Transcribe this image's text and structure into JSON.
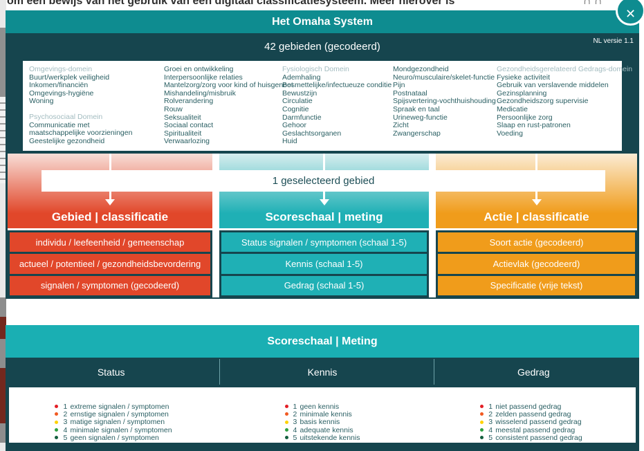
{
  "background": {
    "top_text": "om een bewijs van het gebruik van een digitaal classificatiesysteem. Meer hierover is",
    "top_right_fragment": "∩ ∩"
  },
  "modal": {
    "title": "Het Omaha System",
    "subtitle": "42 gebieden (gecodeerd)",
    "version": "NL versie 1.1",
    "close_icon": "✕"
  },
  "domains": {
    "columns": [
      {
        "blocks": [
          {
            "header": "Omgevings-domein",
            "items": [
              "Buurt/werkplek veiligheid",
              "Inkomen/financiën",
              "Omgevings-hygiëne",
              "Woning"
            ]
          },
          {
            "header": "Psychosociaal Domein",
            "items": [
              "Communicatie met",
              "maatschappelijke voorzieningen",
              "Geestelijke gezondheid"
            ]
          }
        ]
      },
      {
        "blocks": [
          {
            "header": "",
            "items": [
              "Groei en ontwikkeling",
              "Interpersoonlijke relaties",
              "Mantelzorg/zorg voor kind of huisgenoot",
              "Mishandeling/misbruik",
              "Rolverandering",
              "Rouw",
              "Seksualiteit",
              "Sociaal contact",
              "Spiritualiteit",
              "Verwaarlozing"
            ]
          }
        ]
      },
      {
        "blocks": [
          {
            "header": "Fysiologisch Domein",
            "items": [
              "Ademhaling",
              "Besmettelijke/infectueuze conditie",
              "Bewustzijn",
              "Circulatie",
              "Cognitie",
              "Darmfunctie",
              "Gehoor",
              "Geslachtsorganen",
              "Huid"
            ]
          }
        ]
      },
      {
        "blocks": [
          {
            "header": "",
            "items": [
              "Mondgezondheid",
              "Neuro/musculaire/skelet-functie",
              "Pijn",
              "Postnataal",
              "Spijsvertering-vochthuishouding",
              "Spraak en taal",
              "Urineweg-functie",
              "Zicht",
              "Zwangerschap"
            ]
          }
        ]
      },
      {
        "blocks": [
          {
            "header": "Gezondheidsgerelateerd Gedrags-domein",
            "items": [
              "Fysieke activiteit",
              "Gebruik van verslavende middelen",
              "Gezinsplanning",
              "Gezondheidszorg supervisie",
              "Medicatie",
              "Persoonlijke zorg",
              "Slaap en rust-patronen",
              "Voeding"
            ]
          }
        ]
      }
    ]
  },
  "flow": {
    "selected_label": "1 geselecteerd gebied",
    "columns": [
      {
        "header": "Gebied | classificatie",
        "color": "#e1472a",
        "buttons": [
          "individu / leefeenheid / gemeenschap",
          "actueel / potentieel / gezondheidsbevordering",
          "signalen / symptomen (gecodeerd)"
        ]
      },
      {
        "header": "Scoreschaal | meting",
        "color": "#1fb0b5",
        "buttons": [
          "Status signalen / symptomen (schaal 1-5)",
          "Kennis (schaal 1-5)",
          "Gedrag (schaal 1-5)"
        ]
      },
      {
        "header": "Actie | classificatie",
        "color": "#f09c1b",
        "buttons": [
          "Soort actie (gecodeerd)",
          "Actievlak (gecodeerd)",
          "Specificatie (vrije tekst)"
        ]
      }
    ]
  },
  "score_panel": {
    "title": "Scoreschaal | Meting",
    "columns": [
      {
        "header": "Status",
        "items": [
          {
            "num": "1",
            "label": "extreme signalen / symptomen",
            "color": "#e31e25"
          },
          {
            "num": "2",
            "label": "ernstige signalen / symptomen",
            "color": "#f15a22"
          },
          {
            "num": "3",
            "label": "matige signalen / symptomen",
            "color": "#ffd200"
          },
          {
            "num": "4",
            "label": "minimale signalen / symptomen",
            "color": "#2fa043"
          },
          {
            "num": "5",
            "label": "geen signalen / symptomen",
            "color": "#14603f"
          }
        ]
      },
      {
        "header": "Kennis",
        "items": [
          {
            "num": "1",
            "label": "geen kennis",
            "color": "#e31e25"
          },
          {
            "num": "2",
            "label": "minimale kennis",
            "color": "#f15a22"
          },
          {
            "num": "3",
            "label": "basis kennis",
            "color": "#ffd200"
          },
          {
            "num": "4",
            "label": "adequate kennis",
            "color": "#2fa043"
          },
          {
            "num": "5",
            "label": "uitstekende kennis",
            "color": "#14603f"
          }
        ]
      },
      {
        "header": "Gedrag",
        "items": [
          {
            "num": "1",
            "label": "niet passend gedrag",
            "color": "#e31e25"
          },
          {
            "num": "2",
            "label": "zelden passend gedrag",
            "color": "#f15a22"
          },
          {
            "num": "3",
            "label": "wisselend passend gedrag",
            "color": "#ffd200"
          },
          {
            "num": "4",
            "label": "meestal passend gedrag",
            "color": "#2fa043"
          },
          {
            "num": "5",
            "label": "consistent passend gedrag",
            "color": "#14603f"
          }
        ]
      }
    ]
  },
  "colors": {
    "teal_header": "#0e8c90",
    "teal_bright": "#1fb0b5",
    "dark_teal": "#16454e",
    "red": "#e1472a",
    "orange": "#f09c1b",
    "text_dark": "#2a5f63",
    "text_muted_header": "#a3bcc0"
  }
}
